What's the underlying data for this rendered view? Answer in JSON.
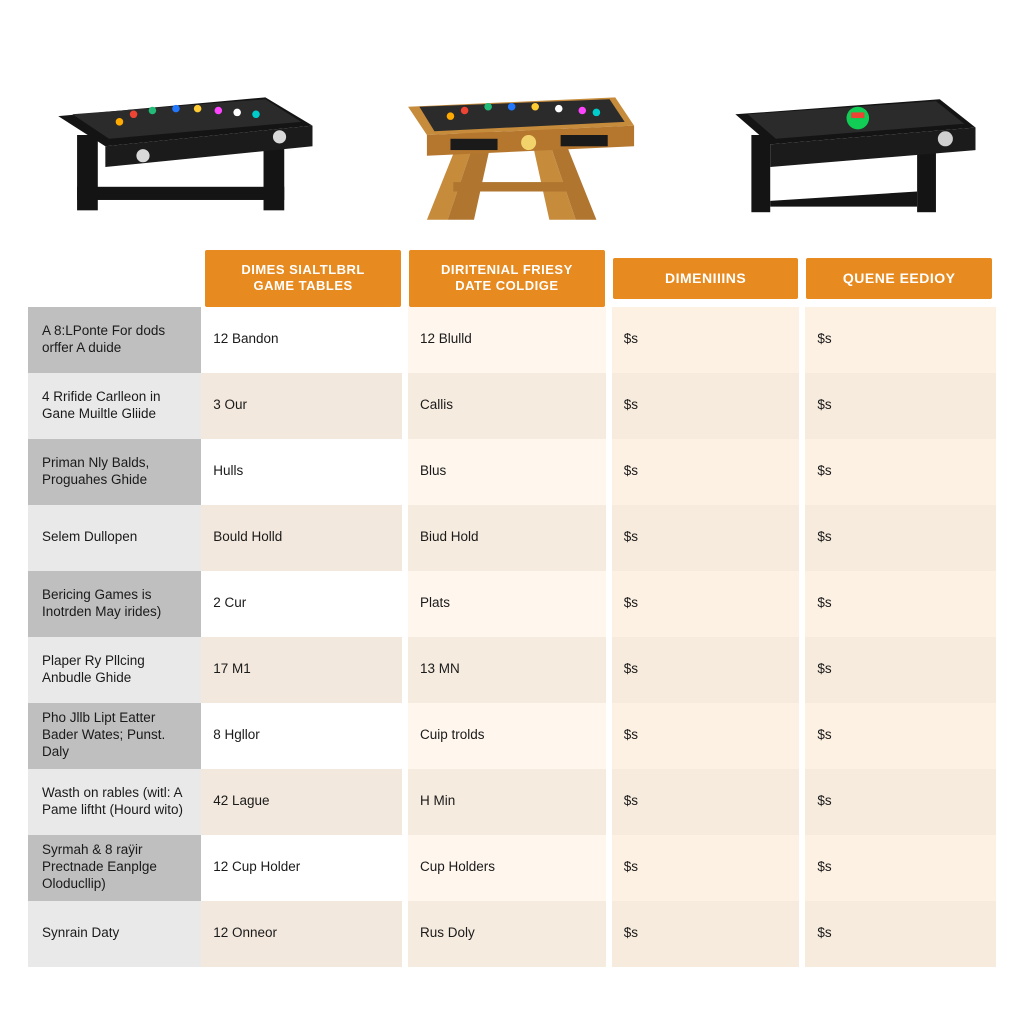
{
  "colors": {
    "header_bg": "#e78a1f",
    "header_text": "#ffffff",
    "rowlabel_dark": "#bfbfbf",
    "rowlabel_light": "#e9e9e9",
    "cell_peach": "#fff5ec",
    "cell_peach_alt": "#f6ebdf",
    "text": "#1a1a1a"
  },
  "headers": {
    "col1": "DIMES SIALTLBRL\nGAME TABLES",
    "col2": "DIRITENIAL FRIESY\nDATE COLDIGE",
    "col3": "DIMENIIINS",
    "col4": "QUENE EEDIOY"
  },
  "rows": [
    {
      "label": "A 8:LPonte For dods orffer A duide",
      "c1": "12 Bandon",
      "c2": "12 Blulld",
      "c3": "$s",
      "c4": "$s"
    },
    {
      "label": "4 Rrifide Carlleon in Gane Muiltle Gliide",
      "c1": "3 Our",
      "c2": "Callis",
      "c3": "$s",
      "c4": "$s"
    },
    {
      "label": "Priman Nly Balds, Proguahes Ghide",
      "c1": "Hulls",
      "c2": "Blus",
      "c3": "$s",
      "c4": "$s"
    },
    {
      "label": "Selem Dullopen",
      "c1": "Bould Holld",
      "c2": "Biud Hold",
      "c3": "$s",
      "c4": "$s"
    },
    {
      "label": "Bericing Games is Inotrden May irides)",
      "c1": "2 Cur",
      "c2": "Plats",
      "c3": "$s",
      "c4": "$s"
    },
    {
      "label": "Plaper Ry Pllcing Anbudle Ghide",
      "c1": "17 M1",
      "c2": "13 MN",
      "c3": "$s",
      "c4": "$s"
    },
    {
      "label": "Pho Jllb Lipt Eatter Bader Wates; Punst. Daly",
      "c1": "8 Hgllor",
      "c2": "Cuip trolds",
      "c3": "$s",
      "c4": "$s"
    },
    {
      "label": "Wasth on rables (witl: A Pame liftht (Hourd wito)",
      "c1": "42 Lague",
      "c2": "H Min",
      "c3": "$s",
      "c4": "$s"
    },
    {
      "label": "Syrmah & 8 raÿir Prectnade Eanplge Oloducllip)",
      "c1": "12 Cup Holder",
      "c2": "Cup Holders",
      "c3": "$s",
      "c4": "$s"
    },
    {
      "label": "Synrain Daty",
      "c1": "12 Onneor",
      "c2": "Rus Doly",
      "c3": "$s",
      "c4": "$s"
    }
  ],
  "gallery": {
    "items": [
      {
        "name": "black-game-table-left",
        "frame": "#141414",
        "top": "#2a2a2a",
        "legs": "#141414",
        "accent": "#e0e0e0"
      },
      {
        "name": "wooden-game-table-center",
        "frame": "#c68b3b",
        "top": "#2a2a2a",
        "legs": "#c68b3b",
        "accent": "#f2d36b"
      },
      {
        "name": "black-game-table-right",
        "frame": "#141414",
        "top": "#2a2a2a",
        "legs": "#141414",
        "accent": "#d0d0d0"
      }
    ]
  }
}
